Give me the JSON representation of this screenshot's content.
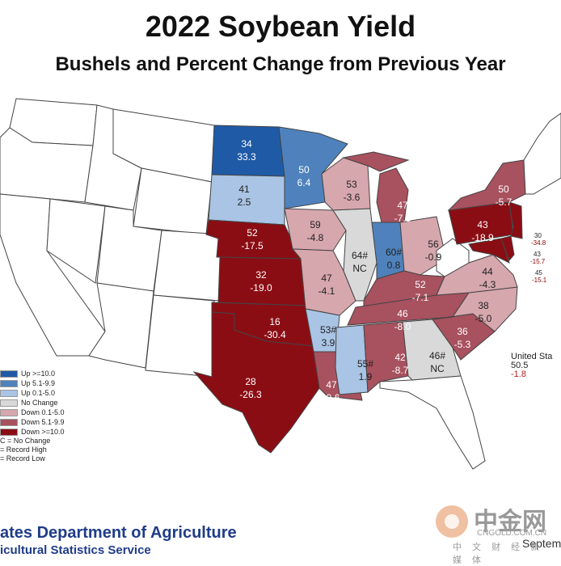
{
  "title": "2022 Soybean Yield",
  "subtitle": "Bushels and Percent Change from Previous Year",
  "colors": {
    "up_10": "#1f5aa6",
    "up_5_9": "#4f82bd",
    "up_0_5": "#a9c4e4",
    "no_change": "#d9d9d9",
    "down_0_5": "#d7a7ae",
    "down_5_9": "#a8515f",
    "down_10": "#8b0d14",
    "nonreporting": "#ffffff"
  },
  "states": {
    "ND": {
      "yield": "34",
      "change": "33.3"
    },
    "MN": {
      "yield": "50",
      "change": "6.4"
    },
    "SD": {
      "yield": "41",
      "change": "2.5"
    },
    "WI": {
      "yield": "53",
      "change": "-3.6"
    },
    "MI": {
      "yield": "47",
      "change": "-7.8"
    },
    "NY": {
      "yield": "50",
      "change": "-5.7"
    },
    "NE": {
      "yield": "52",
      "change": "-17.5"
    },
    "IA": {
      "yield": "59",
      "change": "-4.8"
    },
    "IL": {
      "yield": "64#",
      "change": "NC"
    },
    "IN": {
      "yield": "60#",
      "change": "0.8"
    },
    "OH": {
      "yield": "56",
      "change": "-0.9"
    },
    "PA": {
      "yield": "43",
      "change": "-18.9"
    },
    "KS": {
      "yield": "32",
      "change": "-19.0"
    },
    "MO": {
      "yield": "47",
      "change": "-4.1"
    },
    "KY": {
      "yield": "52",
      "change": "-7.1"
    },
    "VA": {
      "yield": "44",
      "change": "-4.3"
    },
    "NC": {
      "yield": "38",
      "change": "-5.0"
    },
    "TN": {
      "yield": "46",
      "change": "-8.0"
    },
    "OK": {
      "yield": "16",
      "change": "-30.4"
    },
    "AR": {
      "yield": "53#",
      "change": "3.9"
    },
    "SC": {
      "yield": "36",
      "change": "-5.3"
    },
    "TX": {
      "yield": "28",
      "change": "-26.3"
    },
    "MS": {
      "yield": "55#",
      "change": "1.9"
    },
    "AL": {
      "yield": "42",
      "change": "-8.7"
    },
    "GA": {
      "yield": "46#",
      "change": "NC"
    },
    "LA": {
      "yield": "47",
      "change": "-9.6"
    },
    "NJ": {
      "yield": "30",
      "change": "-34.8"
    },
    "DE": {
      "yield": "43",
      "change": "-15.7"
    },
    "MD": {
      "yield": "45",
      "change": "-15.1"
    }
  },
  "legend": {
    "items": [
      {
        "label": "Up >=10.0",
        "color": "#1f5aa6"
      },
      {
        "label": "Up 5.1-9.9",
        "color": "#4f82bd"
      },
      {
        "label": "Up 0.1-5.0",
        "color": "#a9c4e4"
      },
      {
        "label": "No Change",
        "color": "#d9d9d9"
      },
      {
        "label": "Down 0.1-5.0",
        "color": "#d7a7ae"
      },
      {
        "label": "Down 5.1-9.9",
        "color": "#a8515f"
      },
      {
        "label": "Down >=10.0",
        "color": "#8b0d14"
      }
    ],
    "notes": [
      "C = No Change",
      "= Record High",
      "= Record Low"
    ]
  },
  "us_total": {
    "label": "United Sta",
    "yield": "50.5",
    "change": "-1.8"
  },
  "footer": {
    "line1": "ates Department of Agriculture",
    "line2": "icultural Statistics Service",
    "date": "Septem"
  },
  "watermark": {
    "name": "中金网",
    "url": "CNGOLD.COM.CN",
    "sub": "中 文 财 经 新 媒 体"
  }
}
